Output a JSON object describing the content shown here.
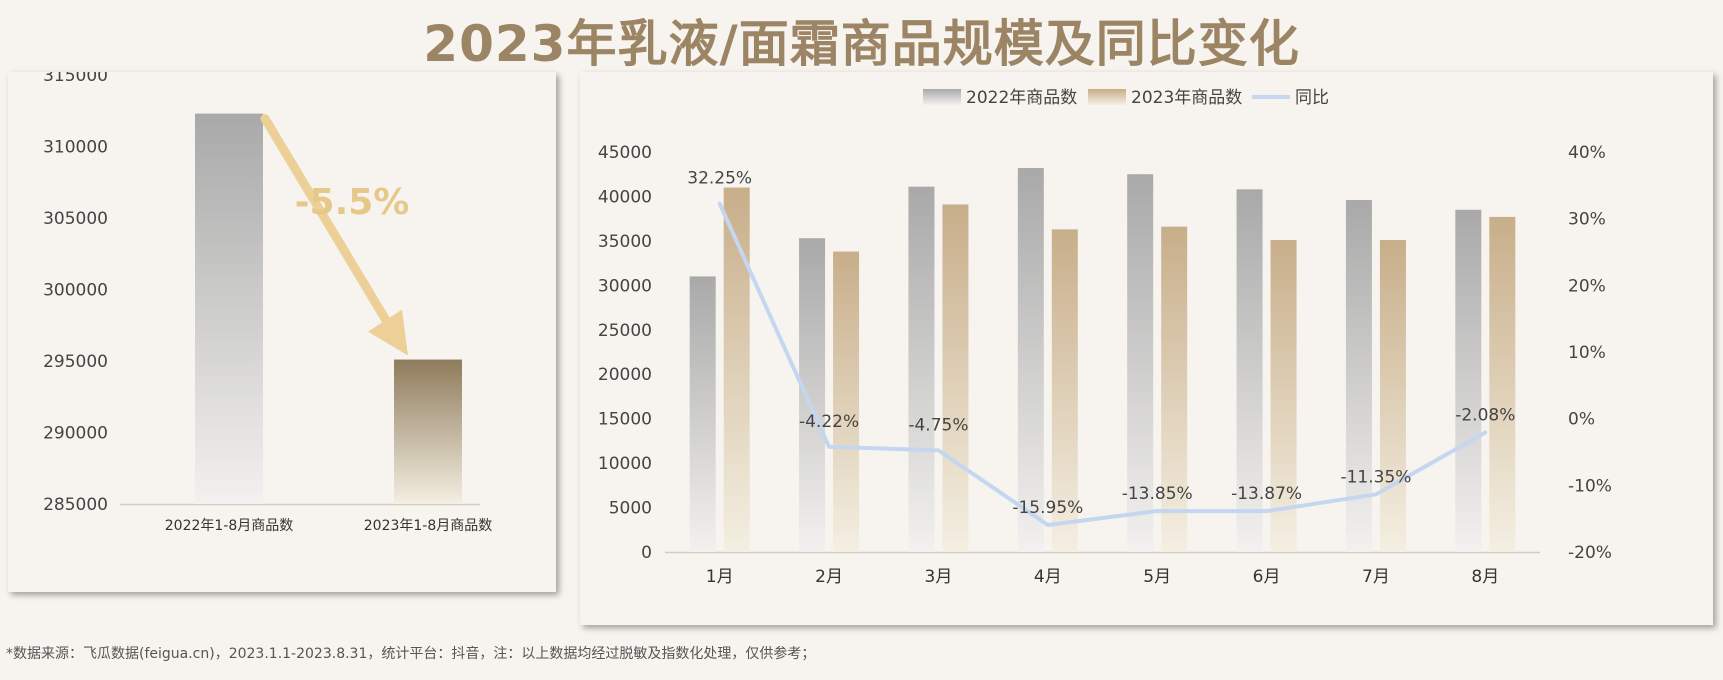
{
  "page": {
    "title": "2023年乳液/面霜商品规模及同比变化",
    "footnote": "*数据来源：飞瓜数据(feigua.cn)，2023.1.1-2023.8.31，统计平台：抖音，注：以上数据均经过脱敏及指数化处理，仅供参考；"
  },
  "colors": {
    "bar_2022": "#a9a9a9",
    "bar_2023": "#c8ae8a",
    "bar_2023_total": "#8f7b5c",
    "line_yoy": "#c4d6f0",
    "arrow": "#ecd097",
    "change_label": "#e6c98a",
    "title": "#9c8564"
  },
  "chart_data": [
    {
      "type": "bar",
      "categories": [
        "2022年1-8月商品数",
        "2023年1-8月商品数"
      ],
      "values": [
        312300,
        295100
      ],
      "ylim": [
        285000,
        315000
      ],
      "yticks": [
        "285000",
        "290000",
        "295000",
        "300000",
        "305000",
        "310000",
        "315000"
      ],
      "annotation": "-5.5%",
      "grid": false
    },
    {
      "type": "bar",
      "categories": [
        "1月",
        "2月",
        "3月",
        "4月",
        "5月",
        "6月",
        "7月",
        "8月"
      ],
      "series": [
        {
          "name": "2022年商品数",
          "type": "bar",
          "values": [
            31000,
            35300,
            41100,
            43200,
            42500,
            40800,
            39600,
            38500
          ]
        },
        {
          "name": "2023年商品数",
          "type": "bar",
          "values": [
            41000,
            33800,
            39100,
            36300,
            36600,
            35100,
            35100,
            37700
          ]
        },
        {
          "name": "同比",
          "type": "line",
          "axis": "right",
          "values": [
            32.25,
            -4.22,
            -4.75,
            -15.95,
            -13.85,
            -13.87,
            -11.35,
            -2.08
          ],
          "labels": [
            "32.25%",
            "-4.22%",
            "-4.75%",
            "-15.95%",
            "-13.85%",
            "-13.87%",
            "-11.35%",
            "-2.08%"
          ]
        }
      ],
      "ylim": [
        0,
        45000
      ],
      "yticks": [
        "0",
        "5000",
        "10000",
        "15000",
        "20000",
        "25000",
        "30000",
        "35000",
        "40000",
        "45000"
      ],
      "y2lim": [
        -20,
        40
      ],
      "y2ticks": [
        "-20%",
        "-10%",
        "0%",
        "10%",
        "20%",
        "30%",
        "40%"
      ],
      "legend_position": "top-center",
      "grid": false
    }
  ]
}
